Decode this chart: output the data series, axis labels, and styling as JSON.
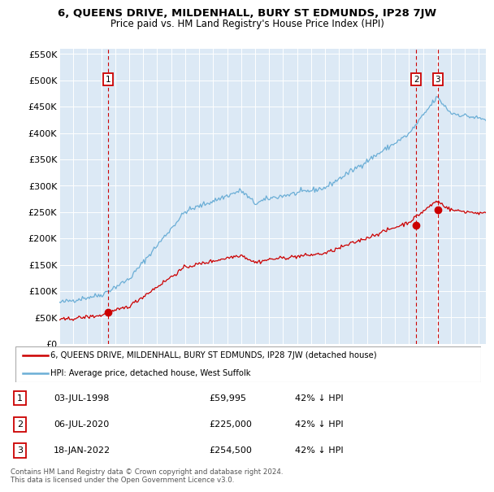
{
  "title_line1": "6, QUEENS DRIVE, MILDENHALL, BURY ST EDMUNDS, IP28 7JW",
  "title_line2": "Price paid vs. HM Land Registry's House Price Index (HPI)",
  "ylabel_ticks": [
    "£0",
    "£50K",
    "£100K",
    "£150K",
    "£200K",
    "£250K",
    "£300K",
    "£350K",
    "£400K",
    "£450K",
    "£500K",
    "£550K"
  ],
  "ytick_values": [
    0,
    50000,
    100000,
    150000,
    200000,
    250000,
    300000,
    350000,
    400000,
    450000,
    500000,
    550000
  ],
  "hpi_color": "#6baed6",
  "price_color": "#cc0000",
  "plot_bg_color": "#dce9f5",
  "legend_label_price": "6, QUEENS DRIVE, MILDENHALL, BURY ST EDMUNDS, IP28 7JW (detached house)",
  "legend_label_hpi": "HPI: Average price, detached house, West Suffolk",
  "trans_years": [
    1998.5,
    2020.51,
    2022.05
  ],
  "trans_prices": [
    59995,
    225000,
    254500
  ],
  "trans_nums": [
    1,
    2,
    3
  ],
  "copyright_text": "Contains HM Land Registry data © Crown copyright and database right 2024.\nThis data is licensed under the Open Government Licence v3.0.",
  "xmin": 1995.0,
  "xmax": 2025.5,
  "ymin": 0,
  "ymax": 560000,
  "table_rows": [
    [
      1,
      "03-JUL-1998",
      "£59,995",
      "42% ↓ HPI"
    ],
    [
      2,
      "06-JUL-2020",
      "£225,000",
      "42% ↓ HPI"
    ],
    [
      3,
      "18-JAN-2022",
      "£254,500",
      "42% ↓ HPI"
    ]
  ]
}
